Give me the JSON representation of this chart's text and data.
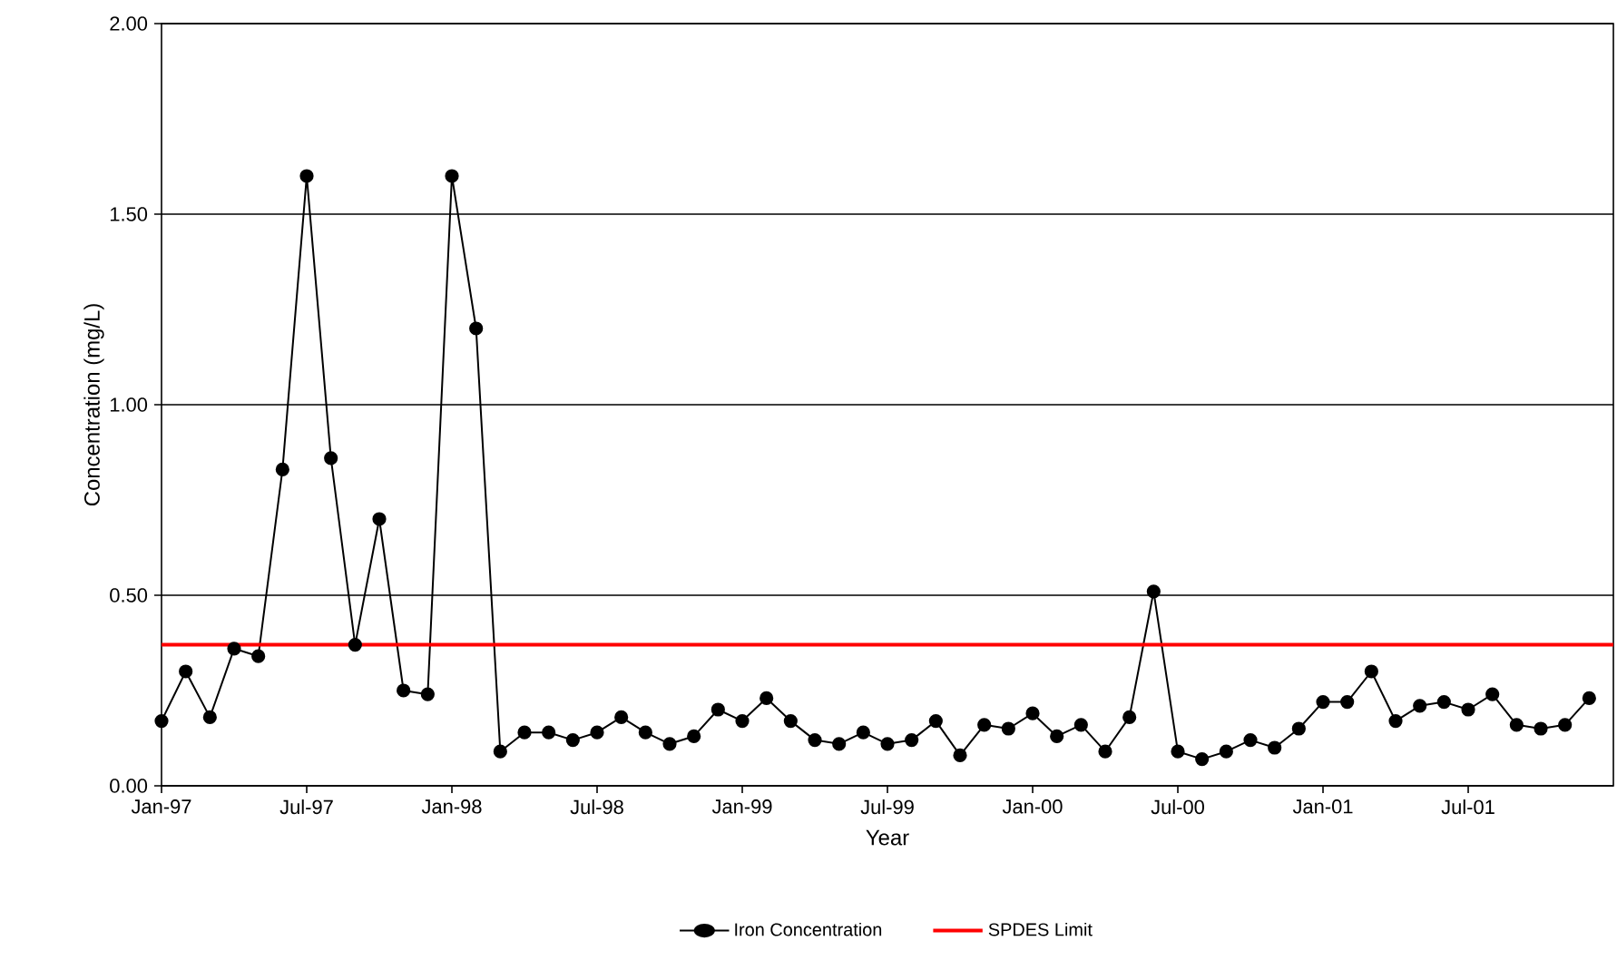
{
  "chart_data": {
    "type": "line",
    "xlabel": "Year",
    "ylabel": "Concentration (mg/L)",
    "x": [
      "1997-01",
      "1997-02",
      "1997-03",
      "1997-04",
      "1997-05",
      "1997-06",
      "1997-07",
      "1997-08",
      "1997-09",
      "1997-10",
      "1997-11",
      "1997-12",
      "1998-01",
      "1998-02",
      "1998-03",
      "1998-04",
      "1998-05",
      "1998-06",
      "1998-07",
      "1998-08",
      "1998-09",
      "1998-10",
      "1998-11",
      "1998-12",
      "1999-01",
      "1999-02",
      "1999-03",
      "1999-04",
      "1999-05",
      "1999-06",
      "1999-07",
      "1999-08",
      "1999-09",
      "1999-10",
      "1999-11",
      "1999-12",
      "2000-01",
      "2000-02",
      "2000-03",
      "2000-04",
      "2000-05",
      "2000-06",
      "2000-07",
      "2000-08",
      "2000-09",
      "2000-10",
      "2000-11",
      "2000-12",
      "2001-01",
      "2001-02",
      "2001-03",
      "2001-04",
      "2001-05",
      "2001-06",
      "2001-07",
      "2001-08",
      "2001-09",
      "2001-10",
      "2001-11",
      "2001-12"
    ],
    "series": [
      {
        "name": "Iron Concentration",
        "color": "#000000",
        "marker": "circle",
        "values": [
          0.17,
          0.3,
          0.18,
          0.36,
          0.34,
          0.83,
          1.6,
          0.86,
          0.37,
          0.7,
          0.25,
          0.24,
          1.6,
          1.2,
          0.09,
          0.14,
          0.14,
          0.12,
          0.14,
          0.18,
          0.14,
          0.11,
          0.13,
          0.2,
          0.17,
          0.23,
          0.17,
          0.12,
          0.11,
          0.14,
          0.11,
          0.12,
          0.17,
          0.08,
          0.16,
          0.15,
          0.19,
          0.13,
          0.16,
          0.09,
          0.18,
          0.51,
          0.09,
          0.07,
          0.09,
          0.12,
          0.1,
          0.15,
          0.22,
          0.22,
          0.3,
          0.17,
          0.21,
          0.22,
          0.2,
          0.24,
          0.16,
          0.15,
          0.16,
          0.23
        ]
      },
      {
        "name": "SPDES Limit",
        "color": "#ff0000",
        "marker": "none",
        "x": [
          "1997-01",
          "2002-01"
        ],
        "values": [
          0.37,
          0.37
        ]
      }
    ],
    "xlim": [
      "1997-01",
      "2002-01"
    ],
    "xticks": [
      {
        "value": "1997-01",
        "label": "Jan-97"
      },
      {
        "value": "1997-07",
        "label": "Jul-97"
      },
      {
        "value": "1998-01",
        "label": "Jan-98"
      },
      {
        "value": "1998-07",
        "label": "Jul-98"
      },
      {
        "value": "1999-01",
        "label": "Jan-99"
      },
      {
        "value": "1999-07",
        "label": "Jul-99"
      },
      {
        "value": "2000-01",
        "label": "Jan-00"
      },
      {
        "value": "2000-07",
        "label": "Jul-00"
      },
      {
        "value": "2001-01",
        "label": "Jan-01"
      },
      {
        "value": "2001-07",
        "label": "Jul-01"
      }
    ],
    "ylim": [
      0,
      2
    ],
    "yticks": [
      {
        "value": 0,
        "label": "0.00"
      },
      {
        "value": 0.5,
        "label": "0.50"
      },
      {
        "value": 1,
        "label": "1.00"
      },
      {
        "value": 1.5,
        "label": "1.50"
      },
      {
        "value": 2,
        "label": "2.00"
      }
    ],
    "grid": "y",
    "legend": "bottom",
    "line_style": "solid"
  }
}
